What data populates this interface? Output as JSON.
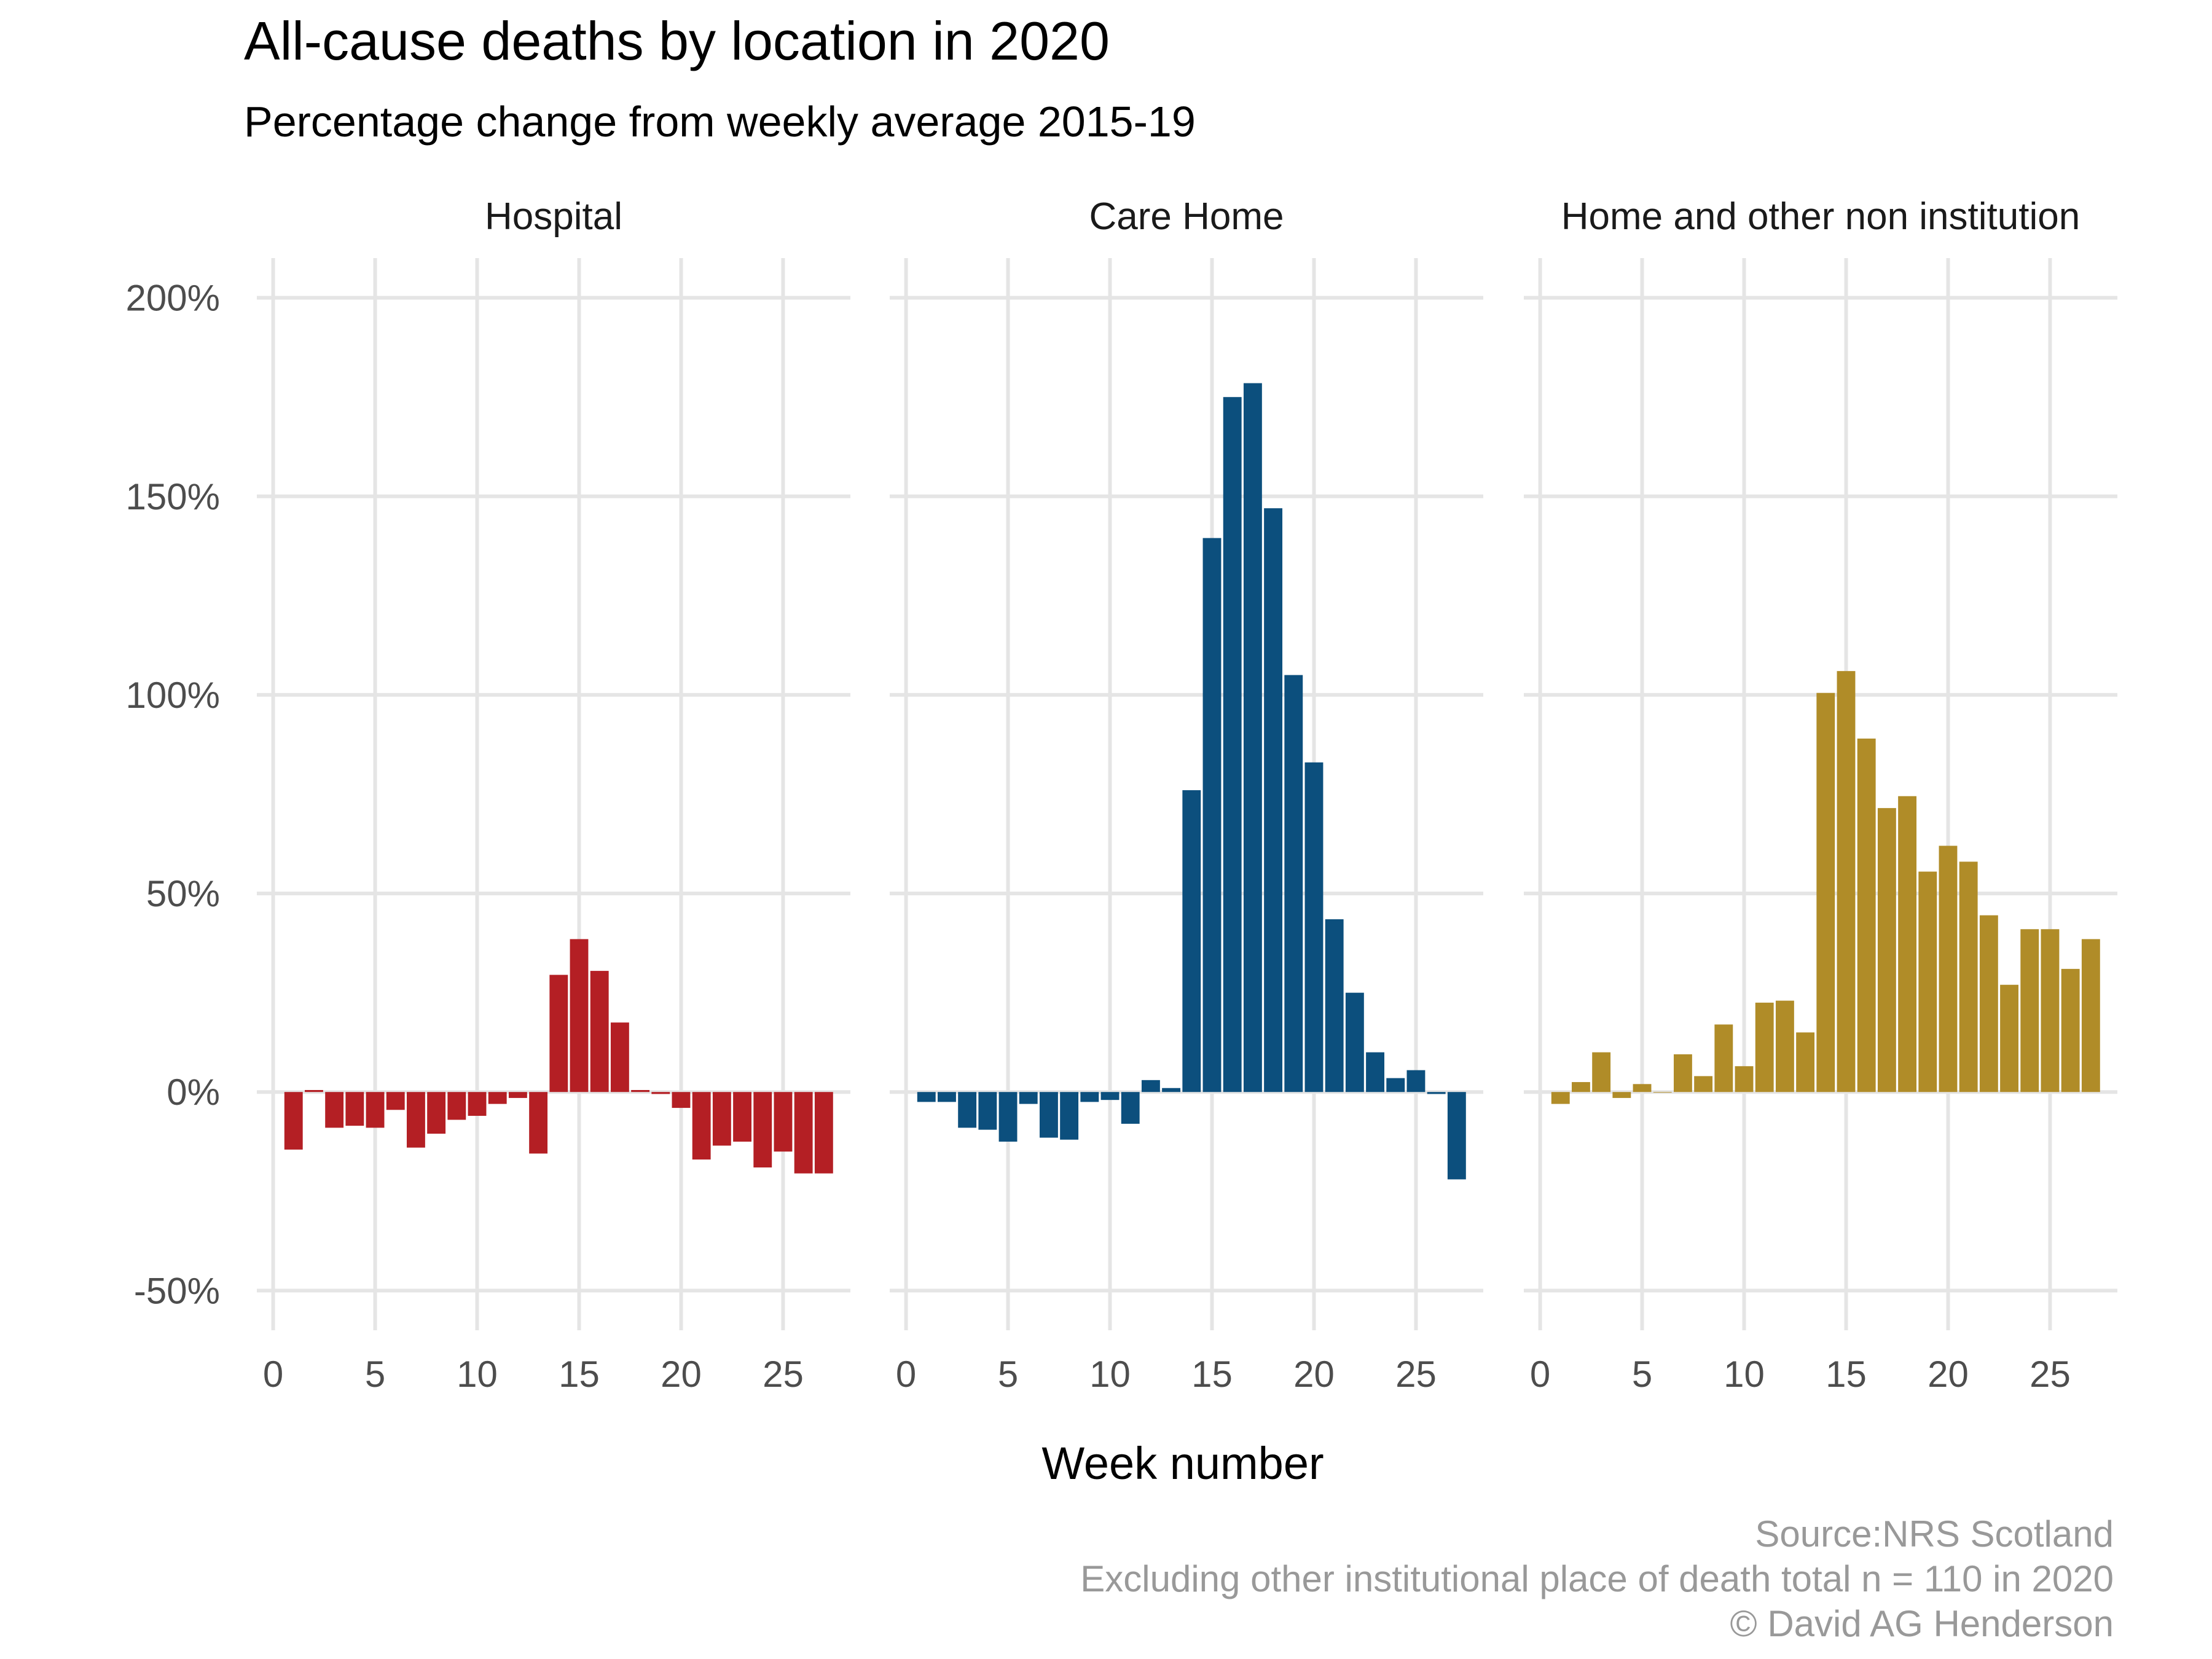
{
  "chart_data": {
    "type": "bar",
    "title": "All-cause deaths by location in 2020",
    "subtitle": "Percentage change from weekly average 2015-19",
    "xlabel": "Week number",
    "ylabel": "",
    "ylim": [
      -60,
      210
    ],
    "y_ticks": [
      -50,
      0,
      50,
      100,
      150,
      200
    ],
    "y_tick_labels": [
      "-50%",
      "0%",
      "50%",
      "100%",
      "150%",
      "200%"
    ],
    "xlim": [
      -0.8,
      28.3
    ],
    "x_ticks": [
      0,
      5,
      10,
      15,
      20,
      25
    ],
    "x_tick_labels": [
      "0",
      "5",
      "10",
      "15",
      "20",
      "25"
    ],
    "weeks": [
      1,
      2,
      3,
      4,
      5,
      6,
      7,
      8,
      9,
      10,
      11,
      12,
      13,
      14,
      15,
      16,
      17,
      18,
      19,
      20,
      21,
      22,
      23,
      24,
      25,
      26,
      27
    ],
    "panels": [
      {
        "name": "Hospital",
        "color": "#b41f24",
        "values": [
          -14.5,
          0.5,
          -9,
          -8.5,
          -9,
          -4.5,
          -14,
          -10.5,
          -7,
          -6,
          -3,
          -1.5,
          -15.5,
          29.5,
          38.5,
          30.5,
          17.5,
          0.5,
          -0.5,
          -4,
          -17,
          -13.5,
          -12.5,
          -19,
          -15,
          -20.5,
          -20.5
        ]
      },
      {
        "name": "Care Home",
        "color": "#0c4f7d",
        "values": [
          -2.5,
          -2.5,
          -9,
          -9.5,
          -12.5,
          -3,
          -11.5,
          -12,
          -2.5,
          -2,
          -8,
          3,
          1,
          76,
          139.5,
          175,
          178.5,
          147,
          105,
          83,
          43.5,
          25,
          10,
          3.5,
          5.5,
          -0.5,
          -22
        ]
      },
      {
        "name": "Home and other non institution",
        "color": "#b08c28",
        "values": [
          -3,
          2.5,
          10,
          -1.5,
          2,
          0,
          9.5,
          4,
          17,
          6.5,
          22.5,
          23,
          15,
          100.5,
          106,
          89,
          71.5,
          74.5,
          55.5,
          62,
          58,
          44.5,
          27,
          41,
          41,
          31,
          38.5
        ]
      }
    ],
    "caption": [
      "Source:NRS Scotland",
      "Excluding other institutional place of death total n = 110 in 2020",
      "© David AG Henderson"
    ]
  }
}
